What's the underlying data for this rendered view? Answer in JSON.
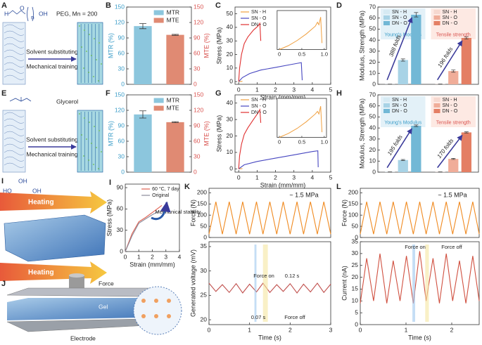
{
  "schematics": {
    "A": {
      "label": "A",
      "formula": [
        "H",
        "O",
        "n",
        "OH"
      ],
      "name": "PEG, Mn = 200",
      "steps": [
        "Solvent substituting",
        "Mechanical training"
      ]
    },
    "E": {
      "label": "E",
      "formula": [
        "HO",
        "OH",
        "OH"
      ],
      "name": "Glycerol",
      "steps": [
        "Solvent substituting",
        "Mechanical training"
      ]
    },
    "I": {
      "label": "I",
      "arrows": [
        "Heating",
        "Heating"
      ]
    },
    "J": {
      "label": "J",
      "parts": [
        "Force",
        "Gel",
        "Electrode"
      ]
    }
  },
  "chart_data": [
    {
      "panel": "B",
      "type": "bar",
      "ylabel": "MTR (%)",
      "y2label": "MTE (%)",
      "ylim": [
        0,
        150
      ],
      "yticks": [
        0,
        30,
        60,
        90,
        120,
        150
      ],
      "y2lim": [
        0,
        150
      ],
      "y2ticks": [
        0,
        30,
        60,
        90,
        120,
        150
      ],
      "legend": "top-right",
      "series": [
        {
          "name": "MTR",
          "color": "#8cc6dd",
          "values": [
            113
          ],
          "errors": [
            5
          ]
        },
        {
          "name": "MTE",
          "color": "#e08a73",
          "values": [
            96
          ],
          "errors": [
            1
          ],
          "axis": "y2"
        }
      ]
    },
    {
      "panel": "C",
      "type": "line",
      "xlabel": "Strain (mm/mm)",
      "ylabel": "Stress (MPa)",
      "xlim": [
        -0.2,
        5
      ],
      "xticks": [
        0,
        1,
        2,
        3,
        4,
        5
      ],
      "ylim": [
        -2,
        55
      ],
      "yticks": [
        0,
        10,
        20,
        30,
        40,
        50
      ],
      "legend": "top-left",
      "series": [
        {
          "name": "SN - H",
          "color": "#f0a040",
          "x": [
            0,
            0.1,
            0.2
          ],
          "values": [
            0,
            0.1,
            0.2
          ]
        },
        {
          "name": "SN - O",
          "color": "#4646c0",
          "x": [
            0,
            0.2,
            0.6,
            1.2,
            2,
            2.8,
            3.4,
            3.45
          ],
          "values": [
            0,
            3,
            6,
            8.5,
            10.5,
            12.5,
            14,
            1
          ]
        },
        {
          "name": "DN - O",
          "color": "#e03030",
          "x": [
            0,
            0.05,
            0.15,
            0.3,
            0.5,
            0.8,
            1.05,
            1.15,
            1.2
          ],
          "values": [
            0,
            10,
            20,
            28,
            33,
            38,
            41,
            43,
            30
          ]
        }
      ],
      "inset": {
        "xlim": [
          -0.05,
          1.05
        ],
        "xticks": [
          0,
          0.5,
          {
            "value": 1,
            "label": "1.0"
          }
        ],
        "ylim": [
          0,
          0.3
        ],
        "series": [
          {
            "color": "#f0a040",
            "x": [
              0,
              0.2,
              0.4,
              0.6,
              0.8,
              0.85,
              0.88,
              0.92,
              0.95
            ],
            "values": [
              0,
              0.03,
              0.07,
              0.12,
              0.18,
              0.21,
              0.19,
              0.25,
              0.05
            ]
          }
        ]
      }
    },
    {
      "panel": "D",
      "type": "grouped_bar",
      "ylabel": "Modulus, Strength (MPa)",
      "groups": [
        "Young's Modulus",
        "Tensile strength"
      ],
      "ylim": [
        0,
        70
      ],
      "yticks": [
        0,
        10,
        20,
        30,
        40,
        50,
        60,
        70
      ],
      "annotations": [
        "388 folds",
        "196 folds"
      ],
      "series": [
        {
          "name": "SN - H",
          "colors": [
            "#d6eaf3",
            "#f6d8cf"
          ],
          "values": [
            0.16,
            0.21
          ],
          "errors": [
            0.05,
            0.05
          ]
        },
        {
          "name": "SN - O",
          "colors": [
            "#a8d3e6",
            "#f0ad99"
          ],
          "values": [
            22,
            12
          ],
          "errors": [
            1,
            1
          ]
        },
        {
          "name": "DN - O",
          "colors": [
            "#72b8d6",
            "#e47f64"
          ],
          "values": [
            63,
            42
          ],
          "errors": [
            2,
            1
          ]
        }
      ]
    },
    {
      "panel": "F",
      "type": "bar",
      "ylabel": "MTR (%)",
      "y2label": "MTE (%)",
      "ylim": [
        0,
        150
      ],
      "yticks": [
        0,
        30,
        60,
        90,
        120,
        150
      ],
      "y2lim": [
        0,
        150
      ],
      "y2ticks": [
        0,
        30,
        60,
        90,
        120,
        150
      ],
      "legend": "top-right",
      "series": [
        {
          "name": "MTR",
          "color": "#8cc6dd",
          "values": [
            112
          ],
          "errors": [
            7
          ]
        },
        {
          "name": "MTE",
          "color": "#e08a73",
          "values": [
            97
          ],
          "errors": [
            1
          ],
          "axis": "y2"
        }
      ]
    },
    {
      "panel": "G",
      "type": "line",
      "xlabel": "Strain (mm/mm)",
      "ylabel": "Stress (MPa)",
      "xlim": [
        -0.2,
        5
      ],
      "xticks": [
        0,
        1,
        2,
        3,
        4,
        5
      ],
      "ylim": [
        -2,
        45
      ],
      "yticks": [
        0,
        10,
        20,
        30,
        40
      ],
      "legend": "top-left",
      "series": [
        {
          "name": "SN - H",
          "color": "#f0a040",
          "x": [
            0,
            0.1,
            0.2
          ],
          "values": [
            0,
            0.1,
            0.2
          ]
        },
        {
          "name": "SN - O",
          "color": "#4646c0",
          "x": [
            0,
            0.3,
            1,
            2,
            3,
            4,
            4.3,
            4.32
          ],
          "values": [
            0,
            2.5,
            4.5,
            6.5,
            8.5,
            10.5,
            11,
            1
          ]
        },
        {
          "name": "DN - O",
          "color": "#e03030",
          "x": [
            0,
            0.05,
            0.15,
            0.3,
            0.5,
            0.8,
            1.05,
            1.15,
            1.2
          ],
          "values": [
            0,
            8,
            15,
            21,
            25,
            30,
            34,
            36,
            28
          ]
        }
      ],
      "inset": {
        "xlim": [
          -0.05,
          1.05
        ],
        "xticks": [
          0,
          0.5,
          {
            "value": 1,
            "label": "1.0"
          }
        ],
        "ylim": [
          0,
          0.3
        ],
        "series": [
          {
            "color": "#f0a040",
            "x": [
              0,
              0.2,
              0.4,
              0.6,
              0.8,
              0.85,
              0.88,
              0.92,
              0.95
            ],
            "values": [
              0,
              0.03,
              0.07,
              0.12,
              0.18,
              0.2,
              0.18,
              0.24,
              0.04
            ]
          }
        ]
      }
    },
    {
      "panel": "H",
      "type": "grouped_bar",
      "ylabel": "Modulus, Strength (MPa)",
      "groups": [
        "Young's Modulus",
        "Tensile strength"
      ],
      "ylim": [
        0,
        70
      ],
      "yticks": [
        0,
        10,
        20,
        30,
        40,
        50,
        60,
        70
      ],
      "annotations": [
        "195 folds",
        "170 folds"
      ],
      "series": [
        {
          "name": "SN - H",
          "colors": [
            "#d6eaf3",
            "#f6d8cf"
          ],
          "values": [
            0.22,
            0.21
          ],
          "errors": [
            0.05,
            0.05
          ]
        },
        {
          "name": "SN - O",
          "colors": [
            "#a8d3e6",
            "#f0ad99"
          ],
          "values": [
            11,
            12
          ],
          "errors": [
            0.5,
            0.5
          ]
        },
        {
          "name": "DN - O",
          "colors": [
            "#72b8d6",
            "#e47f64"
          ],
          "values": [
            42,
            36
          ],
          "errors": [
            0.7,
            0.5
          ]
        }
      ]
    },
    {
      "panel": "I",
      "type": "line",
      "xlabel": "Strain (mm/mm)",
      "ylabel": "Stress (MPa)",
      "xlim": [
        0,
        4
      ],
      "xticks": [
        0,
        1,
        2,
        3,
        4
      ],
      "ylim": [
        0,
        95
      ],
      "yticks": [
        0,
        30,
        60,
        90
      ],
      "legend": "top-right",
      "annotations": [
        "Mechanical stability"
      ],
      "series": [
        {
          "name": "60 °C, 7 day",
          "color": "#e06050",
          "x": [
            0,
            0.5,
            1,
            1.5,
            2,
            2.5,
            2.7
          ],
          "values": [
            0,
            25,
            42,
            48,
            55,
            62,
            65
          ]
        },
        {
          "name": "Original",
          "color": "#8a8a9a",
          "x": [
            0,
            0.5,
            1,
            1.5,
            2,
            2.5
          ],
          "values": [
            0,
            22,
            40,
            46,
            52,
            57
          ]
        }
      ]
    },
    {
      "panel": "K",
      "type": "line",
      "ylabel": "Force (N)",
      "xlim": [
        0,
        3
      ],
      "ylim": [
        0,
        220
      ],
      "yticks": [
        0,
        50,
        100,
        150,
        200
      ],
      "annotations": [
        "~ 1.5 MPa"
      ],
      "series": [
        {
          "color": "#f08a20",
          "x": [
            0,
            0.17,
            0.33,
            0.5,
            0.67,
            0.83,
            1,
            1.17,
            1.33,
            1.5,
            1.67,
            1.83,
            2,
            2.17,
            2.33,
            2.5,
            2.67,
            2.83,
            3
          ],
          "values": [
            15,
            160,
            15,
            160,
            15,
            160,
            15,
            160,
            15,
            160,
            15,
            160,
            15,
            160,
            15,
            160,
            15,
            160,
            15
          ]
        }
      ]
    },
    {
      "type": "line",
      "xlabel": "Time (s)",
      "ylabel": "Generated voltage (mV)",
      "xlim": [
        0,
        3
      ],
      "xticks": [
        0,
        1,
        2,
        3
      ],
      "ylim": [
        19,
        36
      ],
      "yticks": [
        20,
        25,
        30,
        35
      ],
      "annotations": [
        "Force on",
        "0.12 s",
        "0.07 s",
        "Force off"
      ],
      "series": [
        {
          "color": "#c0504d",
          "x": [
            0,
            0.17,
            0.33,
            0.5,
            0.67,
            0.83,
            1,
            1.17,
            1.33,
            1.5,
            1.67,
            1.83,
            2,
            2.17,
            2.33,
            2.5,
            2.67,
            2.83,
            3
          ],
          "values": [
            27.5,
            25.8,
            27.2,
            25.6,
            27.4,
            25.5,
            27.3,
            25.7,
            27.5,
            25.6,
            27.2,
            25.8,
            27.4,
            25.5,
            27.3,
            25.7,
            27.5,
            25.6,
            27.3
          ]
        }
      ]
    },
    {
      "panel": "L",
      "type": "line",
      "ylabel": "Force (N)",
      "xlim": [
        0,
        2.6
      ],
      "ylim": [
        0,
        220
      ],
      "yticks": [
        0,
        50,
        100,
        150,
        200
      ],
      "annotations": [
        "~ 1.5 MPa"
      ],
      "series": [
        {
          "color": "#f08a20",
          "x": [
            0,
            0.14,
            0.29,
            0.43,
            0.58,
            0.72,
            0.87,
            1.01,
            1.16,
            1.3,
            1.44,
            1.59,
            1.73,
            1.88,
            2.02,
            2.17,
            2.31,
            2.46,
            2.6
          ],
          "values": [
            15,
            160,
            15,
            160,
            15,
            160,
            15,
            160,
            15,
            160,
            15,
            160,
            15,
            160,
            15,
            160,
            15,
            160,
            15
          ]
        }
      ]
    },
    {
      "type": "line",
      "xlabel": "Time (s)",
      "ylabel": "Current (nA)",
      "xlim": [
        0,
        2.6
      ],
      "xticks": [
        0,
        1,
        2
      ],
      "ylim": [
        0,
        35
      ],
      "yticks": [
        0,
        5,
        10,
        15,
        20,
        25,
        30,
        35
      ],
      "annotations": [
        "Force on",
        "Force off"
      ],
      "series": [
        {
          "color": "#d05040",
          "x": [
            0,
            0.14,
            0.29,
            0.43,
            0.58,
            0.72,
            0.87,
            1.01,
            1.16,
            1.3,
            1.44,
            1.59,
            1.73,
            1.88,
            2.02,
            2.17,
            2.31,
            2.46,
            2.6
          ],
          "values": [
            9,
            28,
            10,
            30,
            9,
            27,
            10,
            29,
            9,
            31,
            10,
            28,
            9,
            30,
            10,
            27,
            9,
            29,
            10
          ]
        }
      ]
    }
  ]
}
